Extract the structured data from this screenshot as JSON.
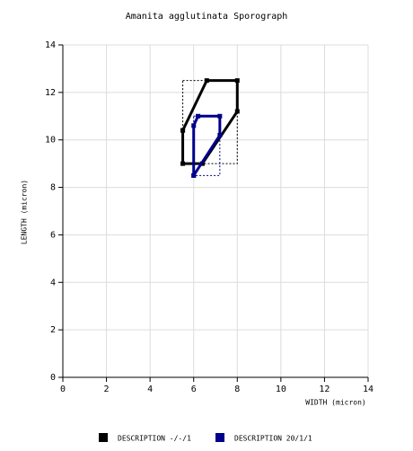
{
  "chart_data": {
    "type": "polygon",
    "title": "Amanita agglutinata Sporograph",
    "x_label": "WIDTH (micron)",
    "y_label": "LENGTH (micron)",
    "xlim": [
      0,
      14
    ],
    "ylim": [
      0,
      14
    ],
    "xticks": [
      0,
      2,
      4,
      6,
      8,
      10,
      12,
      14
    ],
    "yticks": [
      0,
      2,
      4,
      6,
      8,
      10,
      12,
      14
    ],
    "grid": true,
    "legend": "bottom",
    "series": [
      {
        "name": "DESCRIPTION -/-/1",
        "color": "#000000",
        "x": [
          5.5,
          6.6,
          8.0,
          8.0,
          6.4,
          5.5,
          5.5
        ],
        "y": [
          10.4,
          12.5,
          12.5,
          11.2,
          9.0,
          9.0,
          10.4
        ],
        "box_x": [
          5.5,
          8.0
        ],
        "box_y": [
          9.0,
          12.5
        ]
      },
      {
        "name": "DESCRIPTION 20/1/1",
        "color": "#00008b",
        "x": [
          6.0,
          6.0,
          6.2,
          7.2,
          7.2,
          6.0
        ],
        "y": [
          8.5,
          10.6,
          11.0,
          11.0,
          10.2,
          8.5
        ],
        "box_x": [
          6.0,
          7.2
        ],
        "box_y": [
          8.5,
          11.0
        ]
      }
    ]
  }
}
